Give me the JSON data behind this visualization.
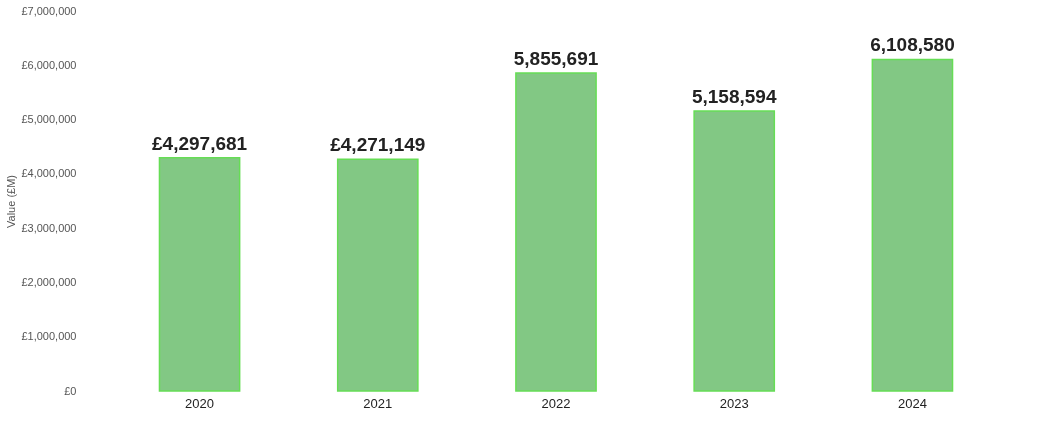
{
  "chart_data": {
    "type": "bar",
    "ylabel": "Value (£M)",
    "categories": [
      "2020",
      "2021",
      "2022",
      "2023",
      "2024"
    ],
    "values": [
      4297681,
      4271149,
      5855691,
      5158594,
      6108580
    ],
    "value_labels": [
      "£4,297,681",
      "£4,271,149",
      "5,855,691",
      "5,158,594",
      "6,108,580"
    ],
    "color": "#82c884",
    "ylim": [
      0,
      7000000
    ],
    "yticks": [
      {
        "value": 0,
        "label": "£0"
      },
      {
        "value": 1000000,
        "label": "£1,000,000"
      },
      {
        "value": 2000000,
        "label": "£2,000,000"
      },
      {
        "value": 3000000,
        "label": "£3,000,000"
      },
      {
        "value": 4000000,
        "label": "£4,000,000"
      },
      {
        "value": 5000000,
        "label": "£5,000,000"
      },
      {
        "value": 6000000,
        "label": "£6,000,000"
      },
      {
        "value": 7000000,
        "label": "£7,000,000"
      }
    ],
    "grid": false
  }
}
